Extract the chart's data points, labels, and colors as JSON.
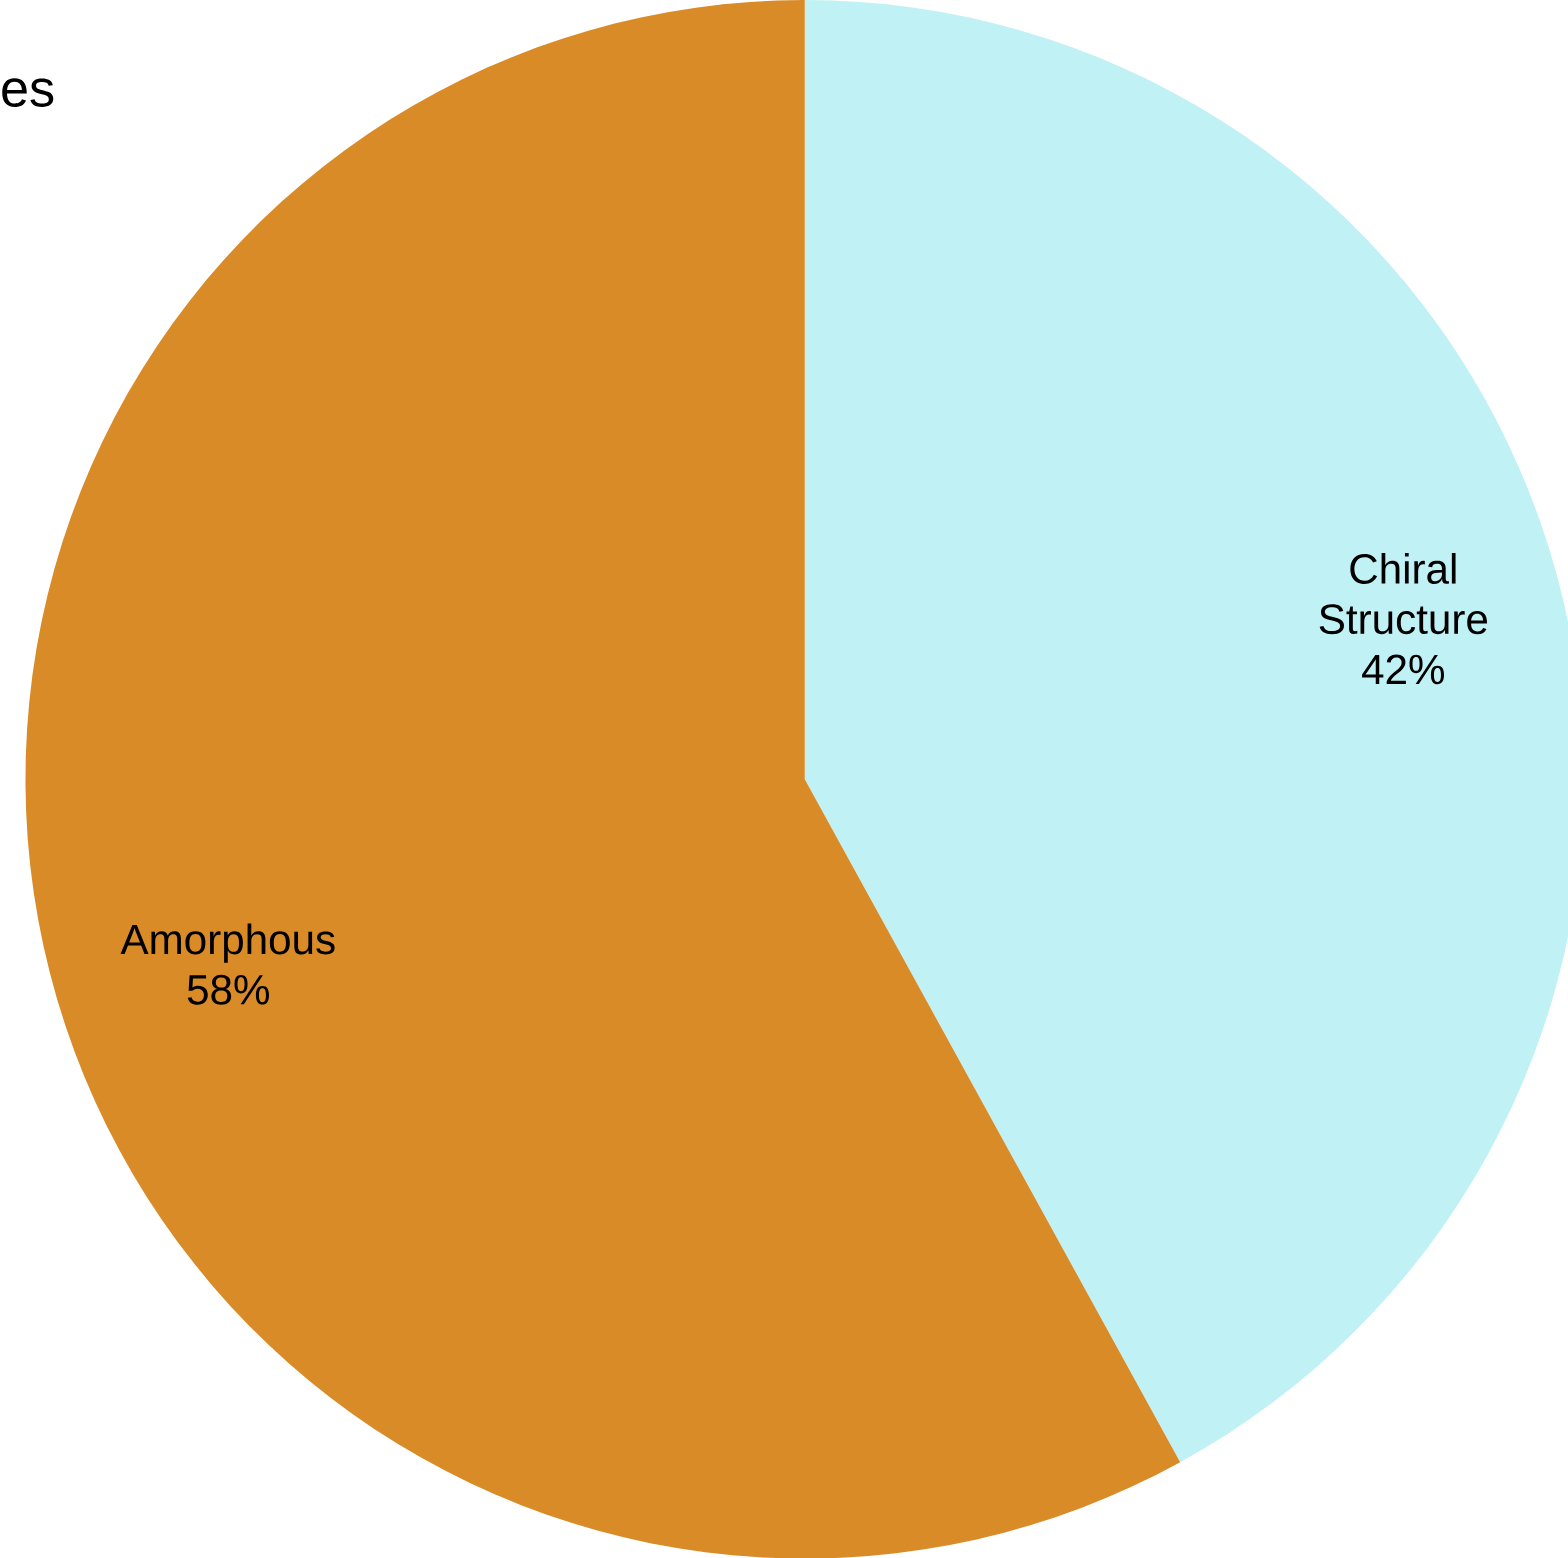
{
  "chart_data": {
    "type": "pie",
    "title": "es",
    "categories": [
      "Chiral Structure",
      "Amorphous"
    ],
    "values": [
      42,
      58
    ],
    "colors": [
      "#c0f1f4",
      "#d98b28"
    ],
    "value_labels": [
      "42%",
      "58%"
    ]
  }
}
